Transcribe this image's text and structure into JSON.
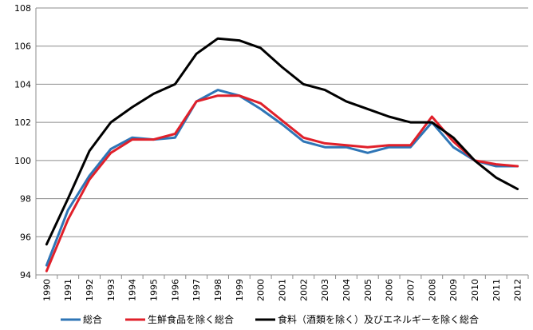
{
  "chart_data": {
    "type": "line",
    "title": "",
    "xlabel": "",
    "ylabel": "",
    "ylim": [
      94,
      108
    ],
    "yticks": [
      94,
      96,
      98,
      100,
      102,
      104,
      106,
      108
    ],
    "grid": "horizontal",
    "legend_position": "bottom",
    "categories": [
      "1990",
      "1991",
      "1992",
      "1993",
      "1994",
      "1995",
      "1996",
      "1997",
      "1998",
      "1999",
      "2000",
      "2001",
      "2002",
      "2003",
      "2004",
      "2005",
      "2006",
      "2007",
      "2008",
      "2009",
      "2010",
      "2011",
      "2012"
    ],
    "series": [
      {
        "name": "総合",
        "color": "#2e75b6",
        "values": [
          94.5,
          97.4,
          99.2,
          100.6,
          101.2,
          101.1,
          101.2,
          103.1,
          103.7,
          103.4,
          102.7,
          101.9,
          101.0,
          100.7,
          100.7,
          100.4,
          100.7,
          100.7,
          102.0,
          100.7,
          100.0,
          99.7,
          99.7
        ]
      },
      {
        "name": "生鮮食品を除く総合",
        "color": "#e0202a",
        "values": [
          94.2,
          96.9,
          99.0,
          100.4,
          101.1,
          101.1,
          101.4,
          103.1,
          103.4,
          103.4,
          103.0,
          102.1,
          101.2,
          100.9,
          100.8,
          100.7,
          100.8,
          100.8,
          102.3,
          101.0,
          100.0,
          99.8,
          99.7
        ]
      },
      {
        "name": "食料（酒類を除く）及びエネルギーを除く総合",
        "color": "#000000",
        "values": [
          95.6,
          98.0,
          100.5,
          102.0,
          102.8,
          103.5,
          104.0,
          105.6,
          106.4,
          106.3,
          105.9,
          104.9,
          104.0,
          103.7,
          103.1,
          102.7,
          102.3,
          102.0,
          102.0,
          101.2,
          100.0,
          99.1,
          98.5
        ]
      }
    ]
  }
}
